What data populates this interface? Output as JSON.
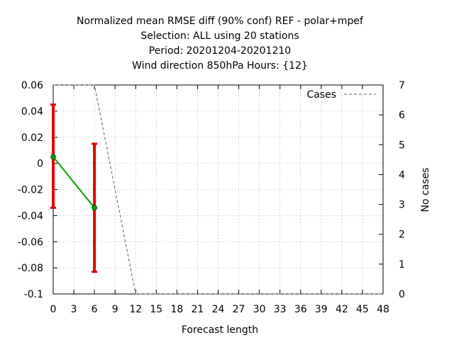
{
  "chart_data": {
    "type": "line",
    "title_lines": [
      "Normalized mean RMSE diff (90% conf) REF - polar+mpef",
      "Selection: ALL using    20 stations",
      "Period: 20201204-20201210",
      "Wind direction 850hPa   Hours: {12}"
    ],
    "xlabel": "Forecast length",
    "ylabel": "",
    "y2label": "No cases",
    "xlim": [
      0,
      48
    ],
    "ylim": [
      -0.1,
      0.06
    ],
    "y2lim": [
      0,
      7
    ],
    "x_ticks": [
      0,
      3,
      6,
      9,
      12,
      15,
      18,
      21,
      24,
      27,
      30,
      33,
      36,
      39,
      42,
      45,
      48
    ],
    "y_ticks": [
      0.06,
      0.04,
      0.02,
      0,
      -0.02,
      -0.04,
      -0.06,
      -0.08,
      -0.1
    ],
    "y_tick_labels": [
      "0.06",
      "0.04",
      "0.02",
      "0",
      "-0.02",
      "-0.04",
      "-0.06",
      "-0.08",
      "-0.1"
    ],
    "y2_ticks": [
      0,
      1,
      2,
      3,
      4,
      5,
      6,
      7
    ],
    "grid": true,
    "legend_position": "top-right",
    "series": [
      {
        "name": "",
        "axis": "y",
        "color": "#00a000",
        "x": [
          0,
          6
        ],
        "y": [
          0.005,
          -0.034
        ],
        "err_low": [
          -0.034,
          -0.083
        ],
        "err_high": [
          0.045,
          0.015
        ],
        "err_color": "#e00000"
      },
      {
        "name": "Cases",
        "axis": "y2",
        "color": "#808080",
        "dashed": true,
        "x": [
          0,
          6,
          12,
          48
        ],
        "y": [
          7,
          7,
          0,
          0
        ]
      }
    ]
  }
}
